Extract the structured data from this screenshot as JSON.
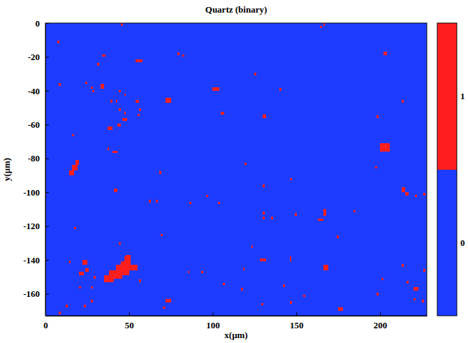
{
  "chart_data": {
    "type": "heatmap",
    "title": "Quartz (binary)",
    "x_label": "x(μm)",
    "y_label": "y(μm)",
    "xlim": [
      0,
      228
    ],
    "ylim": [
      -173,
      0
    ],
    "xticks": [
      0,
      50,
      100,
      150,
      200
    ],
    "yticks": [
      0,
      -20,
      -40,
      -60,
      -80,
      -100,
      -120,
      -140,
      -160
    ],
    "colorbar": {
      "range": [
        0,
        1
      ],
      "ticks": [
        0,
        1
      ],
      "colors": [
        "#1e3cff",
        "#ff1e1e"
      ]
    },
    "cells": [
      {
        "x": 0,
        "y": -173,
        "w": 228,
        "h": 173,
        "value": 0
      },
      {
        "x": 45,
        "y": -1.5,
        "w": 1.2,
        "h": 1.5,
        "value": 1
      },
      {
        "x": 164,
        "y": -3,
        "w": 1.2,
        "h": 1.5,
        "value": 1
      },
      {
        "x": 166,
        "y": -1.5,
        "w": 1.2,
        "h": 1.5,
        "value": 1
      },
      {
        "x": 7,
        "y": -12,
        "w": 1.2,
        "h": 1.5,
        "value": 1
      },
      {
        "x": 34,
        "y": -20,
        "w": 2,
        "h": 1.5,
        "value": 1
      },
      {
        "x": 79,
        "y": -19,
        "w": 1.2,
        "h": 1.5,
        "value": 1
      },
      {
        "x": 82,
        "y": -20,
        "w": 1.2,
        "h": 1.5,
        "value": 1
      },
      {
        "x": 54,
        "y": -23,
        "w": 4,
        "h": 1.5,
        "value": 1
      },
      {
        "x": 31,
        "y": -25,
        "w": 1.2,
        "h": 1.5,
        "value": 1
      },
      {
        "x": 202,
        "y": -19,
        "w": 2,
        "h": 2,
        "value": 1
      },
      {
        "x": 125,
        "y": -31,
        "w": 1.2,
        "h": 1.5,
        "value": 1
      },
      {
        "x": 8,
        "y": -37,
        "w": 1.2,
        "h": 1.5,
        "value": 1
      },
      {
        "x": 24,
        "y": -36,
        "w": 1.2,
        "h": 1.5,
        "value": 1
      },
      {
        "x": 27,
        "y": -39,
        "w": 1.2,
        "h": 1.5,
        "value": 1
      },
      {
        "x": 28,
        "y": -41,
        "w": 1.2,
        "h": 1.5,
        "value": 1
      },
      {
        "x": 33,
        "y": -39,
        "w": 2,
        "h": 3,
        "value": 1
      },
      {
        "x": 44,
        "y": -41,
        "w": 1.2,
        "h": 1.5,
        "value": 1
      },
      {
        "x": 47,
        "y": -43,
        "w": 1.2,
        "h": 1.5,
        "value": 1
      },
      {
        "x": 100,
        "y": -40,
        "w": 4,
        "h": 2,
        "value": 1
      },
      {
        "x": 140,
        "y": -40,
        "w": 1.2,
        "h": 1.5,
        "value": 1
      },
      {
        "x": 39,
        "y": -47,
        "w": 1.2,
        "h": 1.5,
        "value": 1
      },
      {
        "x": 42,
        "y": -47,
        "w": 1.2,
        "h": 1.5,
        "value": 1
      },
      {
        "x": 54,
        "y": -47,
        "w": 2,
        "h": 1.5,
        "value": 1
      },
      {
        "x": 44,
        "y": -52,
        "w": 1.2,
        "h": 1.5,
        "value": 1
      },
      {
        "x": 47,
        "y": -54,
        "w": 1.2,
        "h": 1.5,
        "value": 1
      },
      {
        "x": 56,
        "y": -52,
        "w": 1.2,
        "h": 1.5,
        "value": 1
      },
      {
        "x": 55,
        "y": -55,
        "w": 1.2,
        "h": 1.5,
        "value": 1
      },
      {
        "x": 105,
        "y": -54,
        "w": 2,
        "h": 1.5,
        "value": 1
      },
      {
        "x": 46,
        "y": -58,
        "w": 3,
        "h": 2,
        "value": 1
      },
      {
        "x": 43,
        "y": -61,
        "w": 2,
        "h": 1.5,
        "value": 1
      },
      {
        "x": 37,
        "y": -63,
        "w": 3,
        "h": 2,
        "value": 1
      },
      {
        "x": 72,
        "y": -47,
        "w": 3,
        "h": 3,
        "value": 1
      },
      {
        "x": 130,
        "y": -56,
        "w": 2,
        "h": 2,
        "value": 1
      },
      {
        "x": 16,
        "y": -67,
        "w": 1.2,
        "h": 1.5,
        "value": 1
      },
      {
        "x": 198,
        "y": -56,
        "w": 1.2,
        "h": 1.5,
        "value": 1
      },
      {
        "x": 213,
        "y": -47,
        "w": 1.2,
        "h": 1.5,
        "value": 1
      },
      {
        "x": 37,
        "y": -75,
        "w": 1.2,
        "h": 1.5,
        "value": 1
      },
      {
        "x": 40,
        "y": -77,
        "w": 3,
        "h": 1.5,
        "value": 1
      },
      {
        "x": 200,
        "y": -76,
        "w": 6,
        "h": 5,
        "value": 1
      },
      {
        "x": 197,
        "y": -86,
        "w": 1.2,
        "h": 1.5,
        "value": 1
      },
      {
        "x": 14,
        "y": -90,
        "w": 3,
        "h": 3,
        "value": 1
      },
      {
        "x": 16,
        "y": -87,
        "w": 3,
        "h": 3,
        "value": 1
      },
      {
        "x": 18,
        "y": -84,
        "w": 2,
        "h": 3,
        "value": 1
      },
      {
        "x": 68,
        "y": -89,
        "w": 1.2,
        "h": 1.5,
        "value": 1
      },
      {
        "x": 119,
        "y": -84,
        "w": 1.2,
        "h": 1.5,
        "value": 1
      },
      {
        "x": 41,
        "y": -100,
        "w": 2,
        "h": 2,
        "value": 1
      },
      {
        "x": 146,
        "y": -93,
        "w": 1.2,
        "h": 1.5,
        "value": 1
      },
      {
        "x": 130,
        "y": -97,
        "w": 1.2,
        "h": 1.5,
        "value": 1
      },
      {
        "x": 96,
        "y": -103,
        "w": 1.2,
        "h": 1.5,
        "value": 1
      },
      {
        "x": 213,
        "y": -100,
        "w": 2,
        "h": 3,
        "value": 1
      },
      {
        "x": 215,
        "y": -102,
        "w": 2,
        "h": 2,
        "value": 1
      },
      {
        "x": 221,
        "y": -103,
        "w": 1.2,
        "h": 1.5,
        "value": 1
      },
      {
        "x": 226,
        "y": -102,
        "w": 1.2,
        "h": 1.5,
        "value": 1
      },
      {
        "x": 62,
        "y": -106,
        "w": 1.2,
        "h": 1.5,
        "value": 1
      },
      {
        "x": 66,
        "y": -106,
        "w": 1.2,
        "h": 1.5,
        "value": 1
      },
      {
        "x": 86,
        "y": -107,
        "w": 1.2,
        "h": 1.5,
        "value": 1
      },
      {
        "x": 103,
        "y": -107,
        "w": 1.2,
        "h": 1.5,
        "value": 1
      },
      {
        "x": 130,
        "y": -113,
        "w": 1.2,
        "h": 1.5,
        "value": 1
      },
      {
        "x": 130,
        "y": -116,
        "w": 1.2,
        "h": 1.5,
        "value": 1
      },
      {
        "x": 166,
        "y": -114,
        "w": 2,
        "h": 4,
        "value": 1
      },
      {
        "x": 163,
        "y": -117,
        "w": 3,
        "h": 1.5,
        "value": 1
      },
      {
        "x": 184,
        "y": -112,
        "w": 1.2,
        "h": 1.5,
        "value": 1
      },
      {
        "x": 149,
        "y": -114,
        "w": 1.2,
        "h": 1.5,
        "value": 1
      },
      {
        "x": 135,
        "y": -116,
        "w": 1.2,
        "h": 1.5,
        "value": 1
      },
      {
        "x": 17,
        "y": -122,
        "w": 1.2,
        "h": 1.5,
        "value": 1
      },
      {
        "x": 174,
        "y": -127,
        "w": 1.2,
        "h": 1.5,
        "value": 1
      },
      {
        "x": 69,
        "y": -126,
        "w": 1.2,
        "h": 1.5,
        "value": 1
      },
      {
        "x": 44,
        "y": -131,
        "w": 1.2,
        "h": 1.5,
        "value": 1
      },
      {
        "x": 123,
        "y": -133,
        "w": 1.2,
        "h": 1.5,
        "value": 1
      },
      {
        "x": 14,
        "y": -142,
        "w": 1.2,
        "h": 1.5,
        "value": 1
      },
      {
        "x": 22,
        "y": -143,
        "w": 3,
        "h": 3,
        "value": 1
      },
      {
        "x": 24,
        "y": -147,
        "w": 2,
        "h": 2,
        "value": 1
      },
      {
        "x": 20,
        "y": -149,
        "w": 3,
        "h": 2,
        "value": 1
      },
      {
        "x": 128,
        "y": -141,
        "w": 4,
        "h": 2,
        "value": 1
      },
      {
        "x": 85,
        "y": -148,
        "w": 1.2,
        "h": 1.5,
        "value": 1
      },
      {
        "x": 93,
        "y": -148,
        "w": 1.2,
        "h": 1.5,
        "value": 1
      },
      {
        "x": 146,
        "y": -141,
        "w": 1,
        "h": 3,
        "value": 1
      },
      {
        "x": 118,
        "y": -146,
        "w": 1.2,
        "h": 1.5,
        "value": 1
      },
      {
        "x": 213,
        "y": -144,
        "w": 1.2,
        "h": 1.5,
        "value": 1
      },
      {
        "x": 226,
        "y": -147,
        "w": 1.2,
        "h": 1.5,
        "value": 1
      },
      {
        "x": 166,
        "y": -146,
        "w": 3,
        "h": 3,
        "value": 1
      },
      {
        "x": 29,
        "y": -151,
        "w": 1.2,
        "h": 1.5,
        "value": 1
      },
      {
        "x": 27,
        "y": -157,
        "w": 1.2,
        "h": 1.5,
        "value": 1
      },
      {
        "x": 20,
        "y": -157,
        "w": 1.2,
        "h": 1.5,
        "value": 1
      },
      {
        "x": 56,
        "y": -153,
        "w": 1.2,
        "h": 1.5,
        "value": 1
      },
      {
        "x": 106,
        "y": -155,
        "w": 1.2,
        "h": 1.5,
        "value": 1
      },
      {
        "x": 117,
        "y": -158,
        "w": 1.2,
        "h": 1.5,
        "value": 1
      },
      {
        "x": 142,
        "y": -156,
        "w": 1.2,
        "h": 1.5,
        "value": 1
      },
      {
        "x": 201,
        "y": -152,
        "w": 1.2,
        "h": 1.5,
        "value": 1
      },
      {
        "x": 216,
        "y": -154,
        "w": 1.2,
        "h": 1.5,
        "value": 1
      },
      {
        "x": 220,
        "y": -158,
        "w": 3,
        "h": 2,
        "value": 1
      },
      {
        "x": 198,
        "y": -161,
        "w": 1.2,
        "h": 1.5,
        "value": 1
      },
      {
        "x": 220,
        "y": -164,
        "w": 1.2,
        "h": 1.5,
        "value": 1
      },
      {
        "x": 225,
        "y": -165,
        "w": 1.2,
        "h": 1.5,
        "value": 1
      },
      {
        "x": 27,
        "y": -165,
        "w": 1.2,
        "h": 1.5,
        "value": 1
      },
      {
        "x": 23,
        "y": -168,
        "w": 1.2,
        "h": 1.5,
        "value": 1
      },
      {
        "x": 12,
        "y": -168,
        "w": 1.2,
        "h": 1.5,
        "value": 1
      },
      {
        "x": 8,
        "y": -172,
        "w": 1.2,
        "h": 1.5,
        "value": 1
      },
      {
        "x": 72,
        "y": -165,
        "w": 3,
        "h": 2,
        "value": 1
      },
      {
        "x": 70,
        "y": -169,
        "w": 2,
        "h": 1.5,
        "value": 1
      },
      {
        "x": 175,
        "y": -170,
        "w": 3,
        "h": 2,
        "value": 1
      },
      {
        "x": 129,
        "y": -167,
        "w": 1.2,
        "h": 1.5,
        "value": 1
      },
      {
        "x": 146,
        "y": -166,
        "w": 1.2,
        "h": 1.5,
        "value": 1
      },
      {
        "x": 154,
        "y": -162,
        "w": 1.2,
        "h": 1.5,
        "value": 1
      },
      {
        "x": 35,
        "y": -153,
        "w": 6,
        "h": 4,
        "value": 1
      },
      {
        "x": 38,
        "y": -151,
        "w": 8,
        "h": 5,
        "value": 1
      },
      {
        "x": 42,
        "y": -149,
        "w": 8,
        "h": 6,
        "value": 1
      },
      {
        "x": 45,
        "y": -145,
        "w": 6,
        "h": 4,
        "value": 1
      },
      {
        "x": 47,
        "y": -141,
        "w": 4,
        "h": 3,
        "value": 1
      },
      {
        "x": 48,
        "y": -139,
        "w": 3,
        "h": 2,
        "value": 1
      },
      {
        "x": 50,
        "y": -146,
        "w": 5,
        "h": 3,
        "value": 1
      }
    ]
  }
}
